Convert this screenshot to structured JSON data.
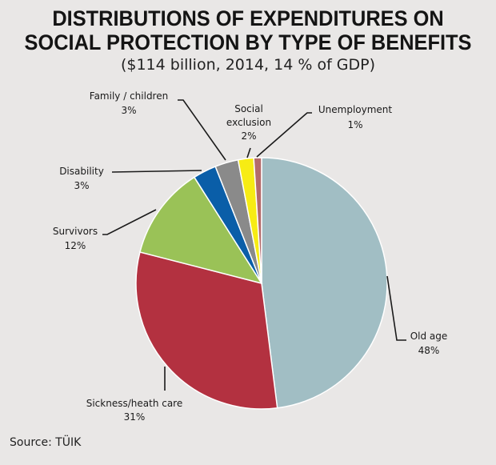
{
  "chart_data": {
    "type": "pie",
    "title_line1": "DISTRIBUTIONS OF EXPENDITURES ON",
    "title_line2": "SOCIAL PROTECTION BY TYPE OF BENEFITS",
    "subtitle": "($114 billion, 2014, 14 % of GDP)",
    "slices": [
      {
        "id": "old-age",
        "label": "Old age",
        "pct_label": "48%",
        "value": 48,
        "color": "#a1bec4"
      },
      {
        "id": "sickness",
        "label": "Sickness/heath care",
        "pct_label": "31%",
        "value": 31,
        "color": "#b33140"
      },
      {
        "id": "survivors",
        "label": "Survivors",
        "pct_label": "12%",
        "value": 12,
        "color": "#9ac257"
      },
      {
        "id": "disability",
        "label": "Disability",
        "pct_label": "3%",
        "value": 3,
        "color": "#0a5ea8"
      },
      {
        "id": "family",
        "label": "Family / children",
        "pct_label": "3%",
        "value": 3,
        "color": "#8a8a8a"
      },
      {
        "id": "social-exclusion",
        "label": "Social\nexclusion",
        "pct_label": "2%",
        "value": 2,
        "color": "#f7ec14"
      },
      {
        "id": "unemployment",
        "label": "Unemployment",
        "pct_label": "1%",
        "value": 1,
        "color": "#b46b6b"
      }
    ],
    "source": "Source: TÜIK"
  }
}
